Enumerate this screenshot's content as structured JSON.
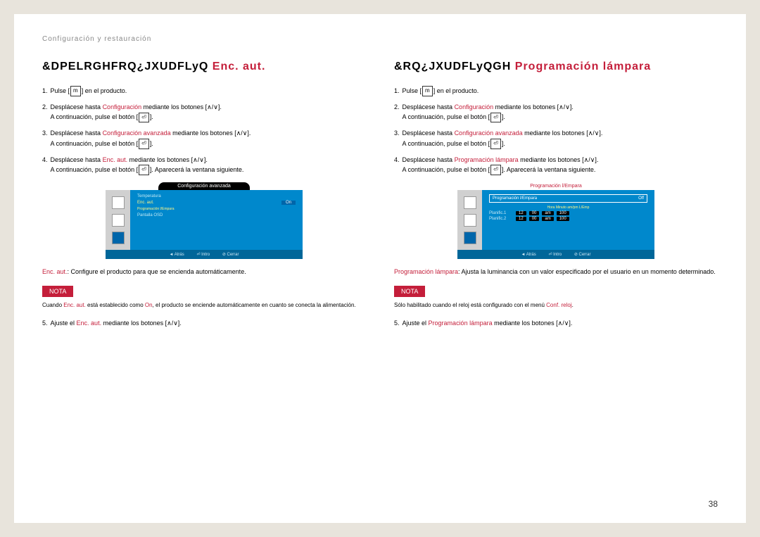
{
  "breadcrumb": "Configuración y restauración",
  "pageNumber": "38",
  "left": {
    "titleBlack": "&DPELRGHFRQ¿JXUDFLyQ",
    "titleRed": "Enc. aut.",
    "steps": [
      {
        "n": "1.",
        "pre": "Pulse ",
        "icon": "m",
        "post": " en el producto."
      },
      {
        "n": "2.",
        "pre": "Desplácese hasta ",
        "hl": "Configuración",
        "post": " mediante los botones [∧/∨].",
        "line2pre": "A continuación, pulse el botón [",
        "line2icon": "⏎",
        "line2post": "]."
      },
      {
        "n": "3.",
        "pre": "Desplácese hasta ",
        "hl": "Configuración avanzada",
        "post": " mediante los botones [∧/∨].",
        "line2pre": "A continuación, pulse el botón [",
        "line2icon": "⏎",
        "line2post": "]."
      },
      {
        "n": "4.",
        "pre": "Desplácese hasta ",
        "hl": "Enc. aut.",
        "post": " mediante los botones [∧/∨].",
        "line2pre": "A continuación, pulse el botón [",
        "line2icon": "⏎",
        "line2post": "]. Aparecerá la ventana siguiente."
      }
    ],
    "osd": {
      "header": "Configuración avanzada",
      "rows": [
        {
          "label": "Temperatura",
          "labelClass": "label"
        },
        {
          "label": "Enc. aut.",
          "value": "On",
          "labelClass": "label hl",
          "valueClass": "value sel"
        },
        {
          "label": "Programación l/Empara",
          "labelClass": "label hl sm"
        },
        {
          "label": "Pantalla OSD",
          "labelClass": "label"
        }
      ],
      "footer": [
        "◄ Atrás",
        "⏎ Intro",
        "⊘ Cerrar"
      ]
    },
    "desc": {
      "hl": "Enc. aut.",
      "text": ": Configure el producto para que se encienda automáticamente."
    },
    "nota": "NOTA",
    "notaText": {
      "pre": "Cuando ",
      "hl1": "Enc. aut.",
      "mid": " está establecido como ",
      "hl2": "On",
      "post": ", el producto se enciende automáticamente en cuanto se conecta la alimentación."
    },
    "step5": {
      "n": "5.",
      "pre": "Ajuste el ",
      "hl": "Enc. aut.",
      "post": " mediante los botones [∧/∨]."
    }
  },
  "right": {
    "titleBlack": "&RQ¿JXUDFLyQGH",
    "titleRed": "Programación lámpara",
    "steps": [
      {
        "n": "1.",
        "pre": "Pulse ",
        "icon": "m",
        "post": " en el producto."
      },
      {
        "n": "2.",
        "pre": "Desplácese hasta ",
        "hl": "Configuración",
        "post": " mediante los botones [∧/∨].",
        "line2pre": "A continuación, pulse el botón [",
        "line2icon": "⏎",
        "line2post": "]."
      },
      {
        "n": "3.",
        "pre": "Desplácese hasta ",
        "hl": "Configuración avanzada",
        "post": " mediante los botones [∧/∨].",
        "line2pre": "A continuación, pulse el botón [",
        "line2icon": "⏎",
        "line2post": "]."
      },
      {
        "n": "4.",
        "pre": "Desplácese hasta ",
        "hl": "Programación lámpara",
        "post": " mediante los botones [∧/∨].",
        "line2pre": "A continuación, pulse el botón [",
        "line2icon": "⏎",
        "line2post": "]. Aparecerá la ventana siguiente."
      }
    ],
    "osd": {
      "header": "Programación l/Empara",
      "topRow": {
        "label": "Programación l/Empara",
        "value": "Off"
      },
      "tableHeader": "Hora   Minuto   am/pm   L/Emp",
      "tableRows": [
        {
          "label": "Planific.1",
          "cells": [
            "12",
            "00",
            "am",
            "100"
          ]
        },
        {
          "label": "Planific.2",
          "cells": [
            "12",
            "00",
            "am",
            "100"
          ]
        }
      ],
      "footer": [
        "◄ Atrás",
        "⏎ Intro",
        "⊘ Cerrar"
      ]
    },
    "desc": {
      "hl": "Programación lámpara",
      "text": ": Ajusta la luminancia con un valor especificado por el usuario en un momento determinado."
    },
    "nota": "NOTA",
    "notaText": {
      "pre": "Sólo habilitado cuando el reloj está configurado con el menú ",
      "hl1": "Conf. reloj",
      "post": "."
    },
    "step5": {
      "n": "5.",
      "pre": "Ajuste el ",
      "hl": "Programación lámpara",
      "post": " mediante los botones [∧/∨]."
    }
  }
}
